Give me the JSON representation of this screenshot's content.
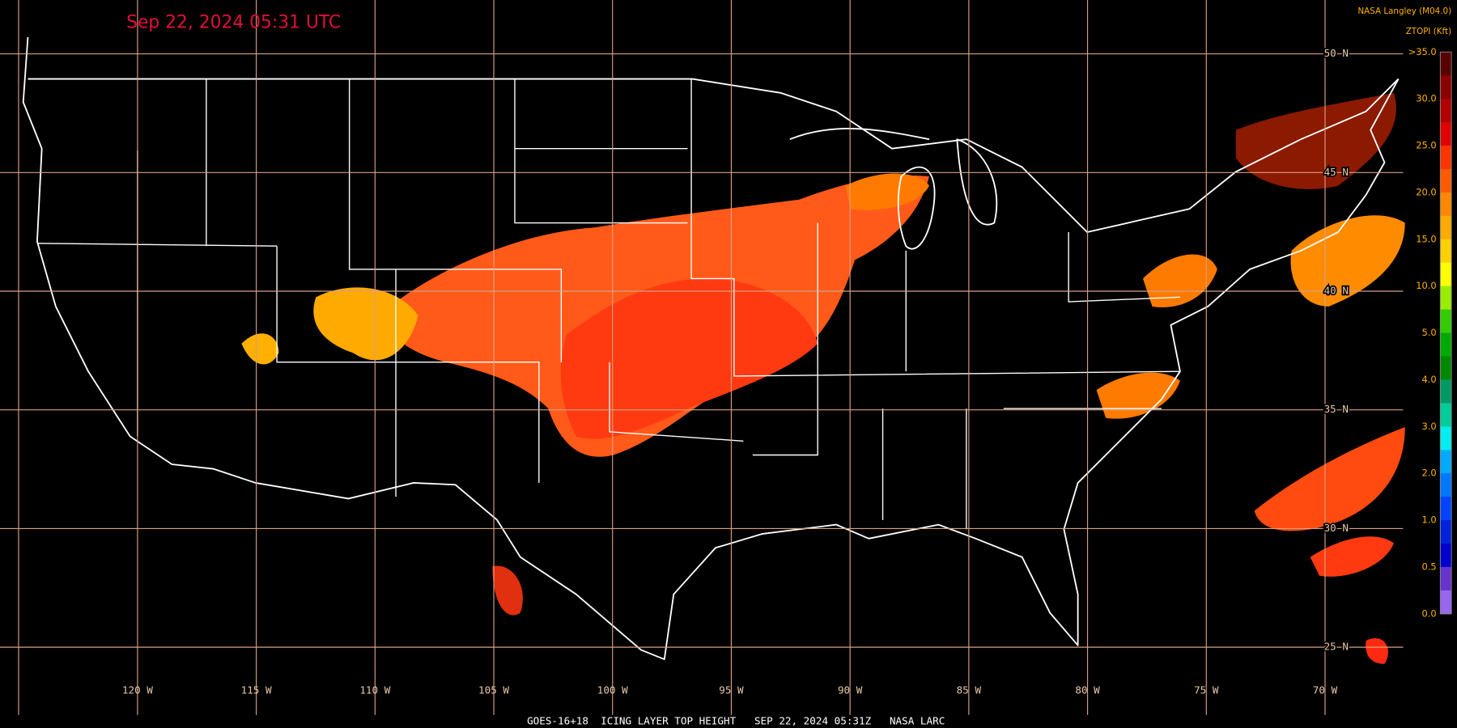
{
  "header": {
    "title": "Sep 22, 2024 05:31 UTC",
    "source": "NASA Langley (M04.0)",
    "product": "ZTOPI (Kft)"
  },
  "grid": {
    "lat_labels": [
      "50 N",
      "45 N",
      "40 N",
      "35 N",
      "30 N",
      "25 N"
    ],
    "lon_labels": [
      "120 W",
      "115 W",
      "110 W",
      "105 W",
      "100 W",
      "95 W",
      "90 W",
      "85 W",
      "80 W",
      "75 W",
      "70 W"
    ]
  },
  "colorbar": {
    "labels": [
      ">35.0",
      "30.0",
      "25.0",
      "20.0",
      "15.0",
      "10.0",
      "5.0",
      "4.0",
      "3.0",
      "2.0",
      "1.0",
      "0.5",
      "0.0"
    ],
    "colors": [
      "#5a0000",
      "#8b0000",
      "#b00000",
      "#e00000",
      "#ff3300",
      "#ff5a00",
      "#ff8800",
      "#ffaa00",
      "#ffd000",
      "#ffff00",
      "#99ee00",
      "#33cc00",
      "#00aa00",
      "#008800",
      "#009966",
      "#00cc99",
      "#00eeee",
      "#00aaff",
      "#0077ff",
      "#0044ff",
      "#0022dd",
      "#0000cc",
      "#6633cc",
      "#9966ee"
    ]
  },
  "footer": {
    "caption": "GOES-16+18  ICING LAYER TOP HEIGHT   SEP 22, 2024 05:31Z   NASA LARC"
  }
}
